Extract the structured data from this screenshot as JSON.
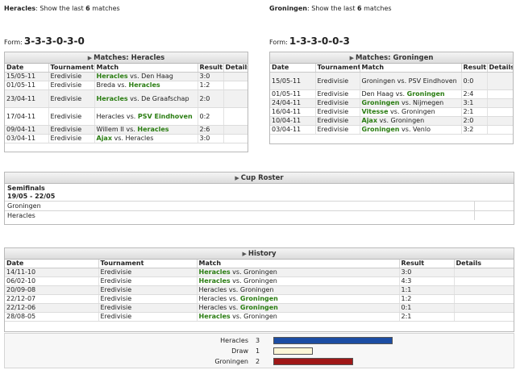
{
  "left": {
    "team": "Heracles",
    "show_text": ": Show the last",
    "show_n": "6",
    "show_suffix": "matches",
    "form_label": "Form:",
    "form_value": "3-3-3-0-3-0",
    "panel_title": "Matches: Heracles"
  },
  "right": {
    "team": "Groningen",
    "show_text": ": Show the last",
    "show_n": "6",
    "show_suffix": "matches",
    "form_label": "Form:",
    "form_value": "1-3-3-0-0-3",
    "panel_title": "Matches: Groningen"
  },
  "columns": {
    "date": "Date",
    "tournament": "Tournament",
    "match": "Match",
    "result": "Result",
    "details": "Details"
  },
  "left_matches": [
    {
      "date": "15/05-11",
      "tournament": "Eredivisie",
      "home": "Heracles",
      "home_win": true,
      "sep": "vs.",
      "away": "Den Haag",
      "away_win": false,
      "result": "3:0"
    },
    {
      "date": "01/05-11",
      "tournament": "Eredivisie",
      "home": "Breda",
      "home_win": false,
      "sep": "vs.",
      "away": "Heracles",
      "away_win": true,
      "result": "1:2"
    },
    {
      "date": "23/04-11",
      "tournament": "Eredivisie",
      "home": "Heracles",
      "home_win": true,
      "sep": "vs. De",
      "away": "Graafschap",
      "away_win": false,
      "result": "2:0",
      "tall": true
    },
    {
      "date": "17/04-11",
      "tournament": "Eredivisie",
      "home": "Heracles",
      "home_win": false,
      "sep": "vs.",
      "away": "PSV Eindhoven",
      "away_win": true,
      "result": "0:2",
      "tall": true
    },
    {
      "date": "09/04-11",
      "tournament": "Eredivisie",
      "home": "Willem II",
      "home_win": false,
      "sep": "vs.",
      "away": "Heracles",
      "away_win": true,
      "result": "2:6"
    },
    {
      "date": "03/04-11",
      "tournament": "Eredivisie",
      "home": "Ajax",
      "home_win": true,
      "sep": "vs.",
      "away": "Heracles",
      "away_win": false,
      "result": "3:0"
    }
  ],
  "right_matches": [
    {
      "date": "15/05-11",
      "tournament": "Eredivisie",
      "home": "Groningen",
      "home_win": false,
      "sep": "vs.",
      "away": "PSV Eindhoven",
      "away_win": false,
      "result": "0:0",
      "tall": true
    },
    {
      "date": "01/05-11",
      "tournament": "Eredivisie",
      "home": "Den Haag",
      "home_win": false,
      "sep": "vs.",
      "away": "Groningen",
      "away_win": true,
      "result": "2:4"
    },
    {
      "date": "24/04-11",
      "tournament": "Eredivisie",
      "home": "Groningen",
      "home_win": true,
      "sep": "vs.",
      "away": "Nijmegen",
      "away_win": false,
      "result": "3:1"
    },
    {
      "date": "16/04-11",
      "tournament": "Eredivisie",
      "home": "Vitesse",
      "home_win": true,
      "sep": "vs.",
      "away": "Groningen",
      "away_win": false,
      "result": "2:1"
    },
    {
      "date": "10/04-11",
      "tournament": "Eredivisie",
      "home": "Ajax",
      "home_win": true,
      "sep": "vs.",
      "away": "Groningen",
      "away_win": false,
      "result": "2:0"
    },
    {
      "date": "03/04-11",
      "tournament": "Eredivisie",
      "home": "Groningen",
      "home_win": true,
      "sep": "vs.",
      "away": "Venlo",
      "away_win": false,
      "result": "3:2"
    }
  ],
  "cup": {
    "title": "Cup Roster",
    "round": "Semifinals",
    "dates": "19/05 - 22/05",
    "teams": [
      "Groningen",
      "Heracles"
    ]
  },
  "history": {
    "title": "History",
    "rows": [
      {
        "date": "14/11-10",
        "tournament": "Eredivisie",
        "home": "Heracles",
        "home_win": true,
        "sep": "vs.",
        "away": "Groningen",
        "away_win": false,
        "result": "3:0"
      },
      {
        "date": "06/02-10",
        "tournament": "Eredivisie",
        "home": "Heracles",
        "home_win": true,
        "sep": "vs.",
        "away": "Groningen",
        "away_win": false,
        "result": "4:3"
      },
      {
        "date": "20/09-08",
        "tournament": "Eredivisie",
        "home": "Heracles",
        "home_win": false,
        "sep": "vs.",
        "away": "Groningen",
        "away_win": false,
        "result": "1:1"
      },
      {
        "date": "22/12-07",
        "tournament": "Eredivisie",
        "home": "Heracles",
        "home_win": false,
        "sep": "vs.",
        "away": "Groningen",
        "away_win": true,
        "result": "1:2"
      },
      {
        "date": "22/12-06",
        "tournament": "Eredivisie",
        "home": "Heracles",
        "home_win": false,
        "sep": "vs.",
        "away": "Groningen",
        "away_win": true,
        "result": "0:1"
      },
      {
        "date": "28/08-05",
        "tournament": "Eredivisie",
        "home": "Heracles",
        "home_win": true,
        "sep": "vs.",
        "away": "Groningen",
        "away_win": false,
        "result": "2:1"
      }
    ]
  },
  "summary": [
    {
      "label": "Heracles",
      "count": 3,
      "color": "#1c4da3"
    },
    {
      "label": "Draw",
      "count": 1,
      "color": "#fbf6d6"
    },
    {
      "label": "Groningen",
      "count": 2,
      "color": "#a01818"
    }
  ],
  "colors": {
    "win_green": "#2a7d12"
  }
}
